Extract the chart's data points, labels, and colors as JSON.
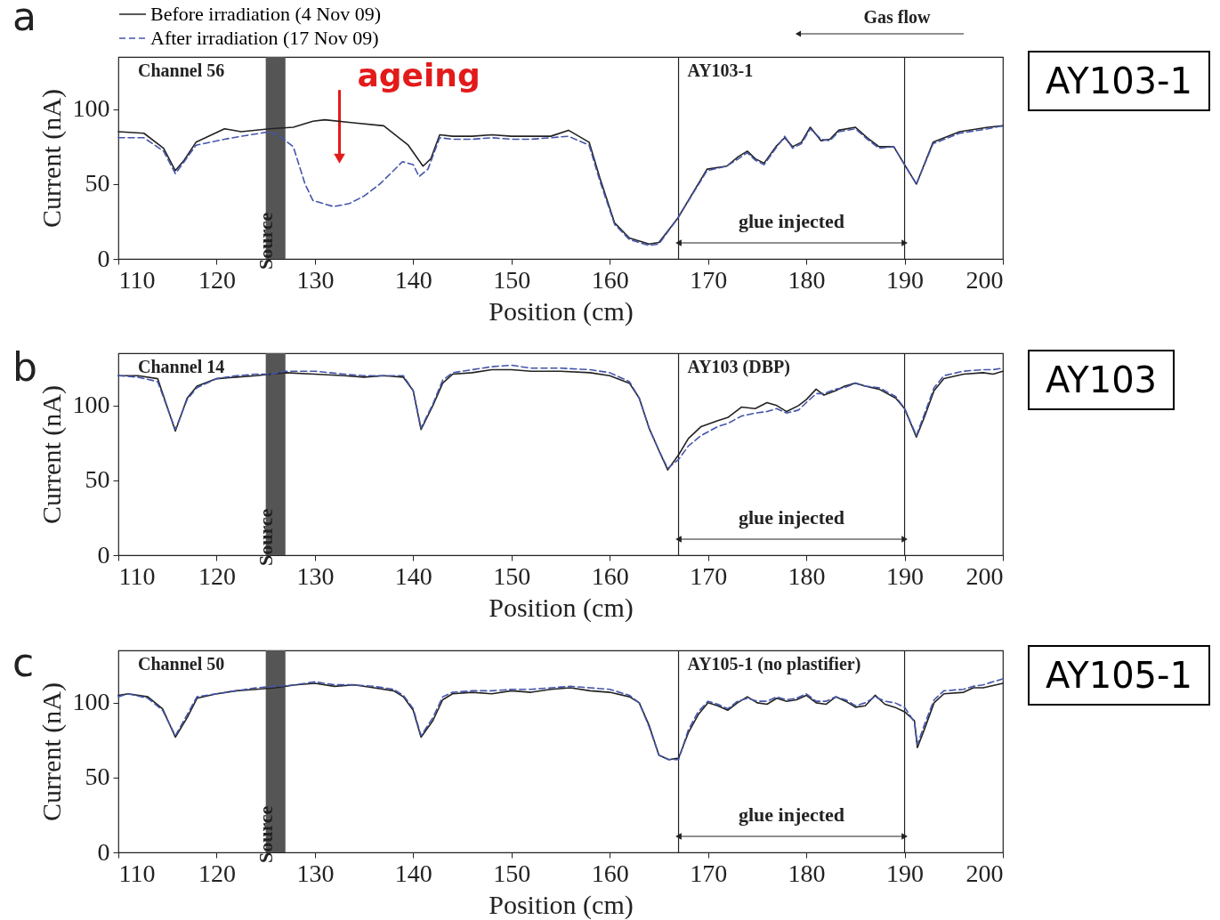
{
  "chart_data": [
    {
      "type": "line",
      "title": "a",
      "xlabel": "Position (cm)",
      "ylabel": "Current (nA)",
      "xlim": [
        110,
        200
      ],
      "ylim": [
        0,
        135
      ],
      "xticks": [
        110,
        120,
        130,
        140,
        150,
        160,
        170,
        180,
        190,
        200
      ],
      "yticks": [
        0,
        50,
        100
      ],
      "legend": "top left",
      "series": [
        {
          "name": "Before irradiation (4 Nov 09)",
          "color": "#222222",
          "line_style": "solid",
          "x": [
            110,
            112.6,
            114.6,
            115.8,
            116.7,
            117.9,
            120.8,
            122.5,
            125.4,
            127.8,
            129.8,
            131,
            133.9,
            137,
            139.5,
            141,
            141.8,
            142.7,
            144,
            146,
            148,
            150,
            152,
            154,
            155.8,
            157.9,
            159,
            160.5,
            162,
            164,
            165,
            166.9,
            169.9,
            171.9,
            173.1,
            174,
            174.8,
            175.7,
            176.9,
            177.8,
            178.6,
            179.5,
            180.4,
            181.5,
            182.4,
            183.3,
            185,
            186.2,
            187.4,
            188.9,
            190,
            191.2,
            192.9,
            195.6,
            198.5,
            200
          ],
          "values": [
            85,
            84,
            74,
            59,
            66,
            78,
            87,
            85,
            87,
            88,
            92,
            93,
            91,
            89,
            76,
            62,
            67,
            83,
            82,
            82,
            83,
            82,
            82,
            82,
            86,
            78,
            54,
            24,
            14,
            10,
            11,
            27,
            60,
            62,
            68.5,
            72,
            67,
            64,
            75,
            81,
            75,
            78,
            88,
            79,
            80,
            86,
            88,
            81,
            75,
            75,
            63,
            50,
            78,
            85,
            88,
            89
          ]
        },
        {
          "name": "After irradiation (17 Nov 09)",
          "color": "#4455aa",
          "line_style": "dashed",
          "x": [
            110,
            112.6,
            114.6,
            115.8,
            116.7,
            117.9,
            120.8,
            122.5,
            125.4,
            126.6,
            127.8,
            129,
            129.8,
            131.9,
            133.5,
            135,
            136.6,
            138,
            138.9,
            140,
            140.6,
            141.5,
            142.7,
            144,
            146,
            148,
            150,
            152,
            154,
            155.8,
            157.9,
            159,
            160.5,
            162,
            164,
            165,
            166.9,
            169.9,
            171.9,
            173.1,
            174,
            174.8,
            175.7,
            176.9,
            177.8,
            178.6,
            179.5,
            180.4,
            181.5,
            182.4,
            183.3,
            185,
            186.2,
            187.4,
            188.9,
            190,
            191.2,
            192.9,
            195.6,
            198.5,
            200
          ],
          "values": [
            81,
            81,
            72,
            57,
            65,
            76,
            80,
            82,
            85,
            81,
            75,
            50,
            39,
            35,
            37,
            42,
            50,
            59,
            65,
            63,
            55,
            60,
            81,
            80,
            80,
            81,
            80,
            80,
            81,
            82,
            76,
            52,
            23,
            13,
            9,
            10,
            27,
            59,
            62,
            67,
            71,
            66,
            63,
            74,
            82,
            74,
            77,
            87,
            80,
            79,
            85,
            87,
            80,
            74,
            75,
            63,
            50,
            77,
            84,
            87,
            89
          ]
        }
      ],
      "ref_lines": [
        {
          "axis": "x",
          "value": 167,
          "label": "AY103-1"
        },
        {
          "axis": "x",
          "value": 190
        }
      ],
      "bands": [
        {
          "axis": "x",
          "from": 125,
          "to": 127,
          "label": "Source",
          "color": "#555555"
        }
      ],
      "annotations": [
        "Channel 56",
        "AY103-1",
        "glue injected",
        "Gas flow",
        {
          "text": "ageing",
          "x": 132.5,
          "y": 67
        }
      ]
    },
    {
      "type": "line",
      "title": "b",
      "xlabel": "Position (cm)",
      "ylabel": "Current (nA)",
      "xlim": [
        110,
        200
      ],
      "ylim": [
        0,
        135
      ],
      "xticks": [
        110,
        120,
        130,
        140,
        150,
        160,
        170,
        180,
        190,
        200
      ],
      "yticks": [
        0,
        50,
        100
      ],
      "x": [
        110,
        112,
        114,
        115.8,
        117,
        118,
        120,
        122,
        124,
        125.5,
        127,
        130,
        133,
        135,
        137,
        139,
        140,
        140.8,
        142,
        143,
        144,
        146,
        148,
        150,
        152,
        155,
        158,
        160,
        162,
        163,
        164,
        165,
        165.9,
        167,
        168,
        169.3,
        171,
        172,
        173.4,
        174.8,
        176,
        177,
        178,
        179.2,
        180,
        181,
        181.8,
        183,
        183.9,
        185,
        186,
        187.4,
        189.1,
        190,
        191.2,
        192,
        193,
        194,
        196,
        198,
        199,
        200
      ],
      "series": [
        {
          "color": "#222222",
          "line_style": "solid",
          "values": [
            120,
            120,
            118,
            83,
            105,
            113,
            118,
            119,
            120,
            121,
            122,
            121,
            120,
            119,
            120,
            119,
            110,
            84,
            100,
            115,
            121,
            122,
            124,
            124,
            123,
            123,
            122,
            120,
            115,
            105,
            85,
            70,
            57,
            67,
            78,
            86,
            90,
            92,
            99,
            98,
            102,
            100,
            96,
            100,
            104,
            111,
            107,
            110,
            113,
            115,
            113,
            111,
            105,
            98,
            79,
            92,
            110,
            118,
            121,
            122,
            121,
            123
          ]
        },
        {
          "color": "#4455aa",
          "line_style": "dashed",
          "values": [
            120,
            119,
            116,
            84,
            104,
            112,
            118,
            120,
            121,
            121,
            123,
            123,
            121,
            120,
            120,
            120,
            110,
            85,
            101,
            117,
            122,
            124,
            126,
            127,
            125,
            125,
            124,
            122,
            116,
            105,
            85,
            70,
            58,
            64,
            73,
            80,
            86,
            88,
            93,
            95,
            96,
            98,
            95,
            97,
            102,
            108,
            108,
            111,
            112,
            115,
            113,
            112,
            106,
            98,
            80,
            94,
            112,
            120,
            123,
            124,
            124,
            125
          ]
        }
      ],
      "ref_lines": [
        {
          "axis": "x",
          "value": 167,
          "label": "AY103 (DBP)"
        },
        {
          "axis": "x",
          "value": 190
        }
      ],
      "bands": [
        {
          "axis": "x",
          "from": 125,
          "to": 127,
          "label": "Source",
          "color": "#555555"
        }
      ],
      "annotations": [
        "Channel 14",
        "AY103",
        "glue injected"
      ]
    },
    {
      "type": "line",
      "title": "c",
      "xlabel": "Position (cm)",
      "ylabel": "Current (nA)",
      "xlim": [
        110,
        200
      ],
      "ylim": [
        0,
        135
      ],
      "xticks": [
        110,
        120,
        130,
        140,
        150,
        160,
        170,
        180,
        190,
        200
      ],
      "yticks": [
        0,
        50,
        100
      ],
      "x": [
        110,
        111,
        113,
        114.5,
        115.8,
        117,
        118,
        120,
        122,
        124,
        126,
        128,
        130,
        132,
        134,
        136,
        138,
        139,
        140,
        140.8,
        142,
        143,
        144,
        146,
        148,
        150,
        152,
        154,
        156,
        158,
        160,
        162,
        163,
        164,
        165,
        166,
        167,
        168,
        169,
        170,
        171,
        172,
        173,
        174,
        175,
        176,
        177,
        178,
        179,
        180,
        181,
        182,
        183,
        184,
        185,
        186,
        187,
        188,
        189,
        190,
        191,
        191.3,
        192,
        193,
        194,
        196,
        197,
        198,
        200
      ],
      "series": [
        {
          "color": "#222222",
          "line_style": "solid",
          "values": [
            105,
            106,
            104,
            96,
            77,
            90,
            103,
            106,
            108,
            109,
            110,
            112,
            113,
            111,
            112,
            110,
            108,
            104,
            95,
            77,
            88,
            102,
            106,
            107,
            106,
            108,
            107,
            109,
            110,
            108,
            107,
            104,
            100,
            85,
            65,
            62,
            63,
            80,
            92,
            100,
            98,
            95,
            100,
            104,
            100,
            99,
            103,
            101,
            102,
            105,
            100,
            99,
            104,
            101,
            97,
            98,
            105,
            99,
            97,
            94,
            88,
            70,
            82,
            100,
            106,
            107,
            110,
            110,
            113
          ]
        },
        {
          "color": "#4455aa",
          "line_style": "dashed",
          "values": [
            104,
            106,
            103,
            95,
            78,
            92,
            104,
            106,
            108,
            110,
            111,
            112,
            114,
            112,
            112,
            111,
            109,
            105,
            96,
            78,
            90,
            104,
            107,
            108,
            108,
            109,
            109,
            110,
            111,
            110,
            109,
            105,
            100,
            84,
            65,
            62,
            62,
            82,
            94,
            101,
            99,
            96,
            101,
            103,
            101,
            101,
            104,
            102,
            103,
            106,
            101,
            101,
            104,
            102,
            98,
            100,
            104,
            101,
            100,
            97,
            87,
            72,
            85,
            102,
            108,
            109,
            111,
            112,
            116
          ]
        }
      ],
      "ref_lines": [
        {
          "axis": "x",
          "value": 167,
          "label": "AY105-1 (no plastifier)"
        },
        {
          "axis": "x",
          "value": 190
        }
      ],
      "bands": [
        {
          "axis": "x",
          "from": 125,
          "to": 127,
          "label": "Source",
          "color": "#555555"
        }
      ],
      "annotations": [
        "Channel 50",
        "AY105-1",
        "glue injected"
      ]
    }
  ]
}
